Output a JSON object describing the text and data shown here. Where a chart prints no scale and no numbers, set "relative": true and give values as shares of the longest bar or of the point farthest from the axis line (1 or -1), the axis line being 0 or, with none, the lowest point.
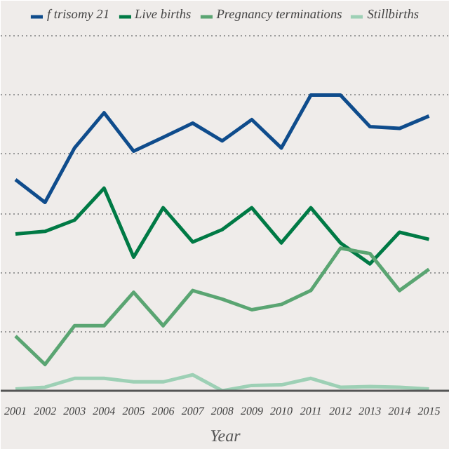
{
  "chart_data": {
    "type": "line",
    "xlabel": "Year",
    "relative": true,
    "x": [
      2001,
      2002,
      2003,
      2004,
      2005,
      2006,
      2007,
      2008,
      2009,
      2010,
      2011,
      2012,
      2013,
      2014,
      2015
    ],
    "xlim": [
      2000.5,
      2015.7
    ],
    "xticks": [
      2001,
      2002,
      2003,
      2004,
      2005,
      2006,
      2007,
      2008,
      2009,
      2010,
      2011,
      2012,
      2013,
      2014,
      2015
    ],
    "series": [
      {
        "name": "f trisomy 21",
        "color": "#0f4c8c",
        "values": [
          0.714,
          0.637,
          0.821,
          0.94,
          0.81,
          0.857,
          0.905,
          0.845,
          0.917,
          0.821,
          1,
          1,
          0.893,
          0.887,
          0.929
        ]
      },
      {
        "name": "Live births",
        "color": "#007a45",
        "values": [
          0.53,
          0.539,
          0.577,
          0.685,
          0.452,
          0.619,
          0.503,
          0.545,
          0.619,
          0.5,
          0.619,
          0.5,
          0.429,
          0.536,
          0.512
        ]
      },
      {
        "name": "Pregnancy terminations",
        "color": "#5aa572",
        "values": [
          0.185,
          0.089,
          0.22,
          0.22,
          0.333,
          0.22,
          0.339,
          0.31,
          0.274,
          0.292,
          0.339,
          0.482,
          0.464,
          0.339,
          0.411
        ]
      },
      {
        "name": "Stillbirths",
        "color": "#9dd0b5",
        "values": [
          0.006,
          0.012,
          0.042,
          0.042,
          0.03,
          0.03,
          0.054,
          0,
          0.018,
          0.02,
          0.042,
          0.012,
          0.014,
          0.012,
          0.006
        ]
      }
    ],
    "grid": "y",
    "legend": "top",
    "line_style": "solid"
  }
}
